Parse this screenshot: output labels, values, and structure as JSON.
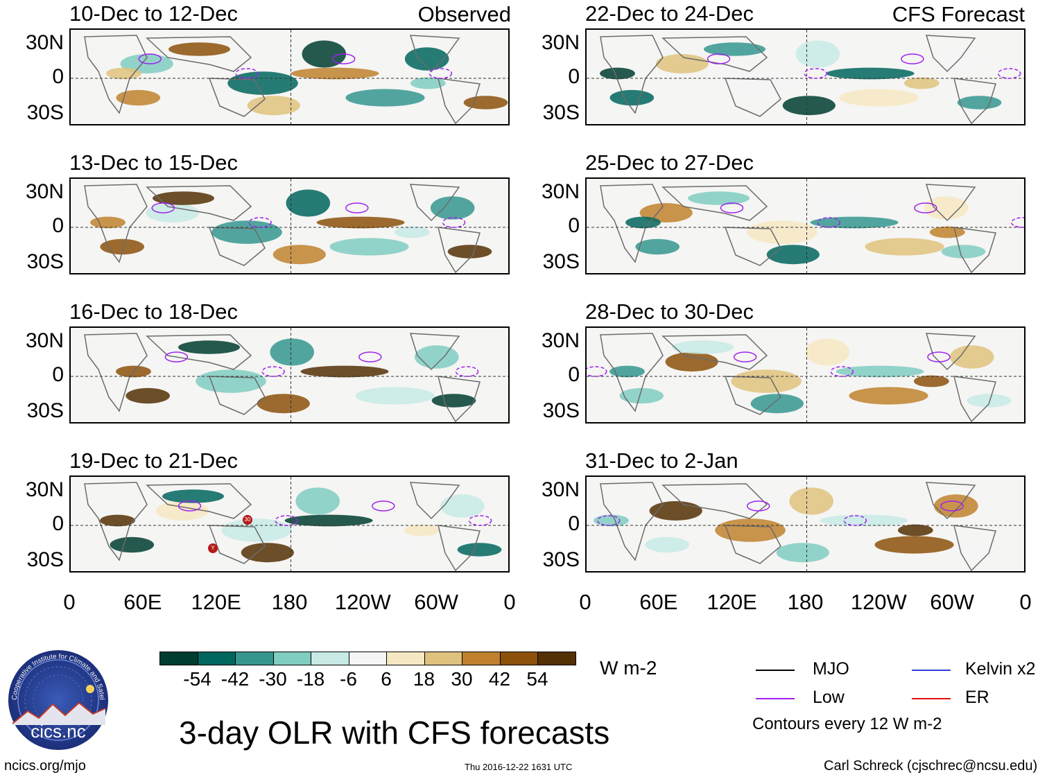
{
  "figure": {
    "title": "3-day OLR with CFS forecasts",
    "footer_left": "ncics.org/mjo",
    "footer_center": "Thu 2016-12-22 1631 UTC",
    "footer_right": "Carl Schreck (cjschrec@ncsu.edu)",
    "observed_label": "Observed",
    "forecast_label": "CFS Forecast",
    "logo": {
      "name": "cics.nc",
      "ring_text": "Cooperative Institute for Climate and Satellites"
    }
  },
  "panels": [
    {
      "title": "10-Dec to 12-Dec",
      "type": "observed"
    },
    {
      "title": "13-Dec to 15-Dec",
      "type": "observed"
    },
    {
      "title": "16-Dec to 18-Dec",
      "type": "observed"
    },
    {
      "title": "19-Dec to 21-Dec",
      "type": "observed"
    },
    {
      "title": "22-Dec to 24-Dec",
      "type": "forecast"
    },
    {
      "title": "25-Dec to 27-Dec",
      "type": "forecast"
    },
    {
      "title": "28-Dec to 30-Dec",
      "type": "forecast"
    },
    {
      "title": "31-Dec to 2-Jan",
      "type": "forecast"
    }
  ],
  "axes": {
    "y_ticks": [
      "30N",
      "0",
      "30S"
    ],
    "x_ticks": [
      "0",
      "60E",
      "120E",
      "180",
      "120W",
      "60W",
      "0"
    ]
  },
  "colorbar": {
    "units": "W m-2",
    "labels": [
      "-54",
      "-42",
      "-30",
      "-18",
      "-6",
      "6",
      "18",
      "30",
      "42",
      "54"
    ],
    "colors": [
      "#003d30",
      "#01665e",
      "#35978f",
      "#80cdc1",
      "#c7eae5",
      "#f5f5f5",
      "#f6e8c3",
      "#dfc27d",
      "#bf812d",
      "#8c510a",
      "#543005"
    ]
  },
  "legend": {
    "items": [
      {
        "label": "MJO",
        "color": "#000000"
      },
      {
        "label": "Kelvin x2",
        "color": "#2d3fd8"
      },
      {
        "label": "Low",
        "color": "#a020f0"
      },
      {
        "label": "ER",
        "color": "#e01010"
      }
    ],
    "note": "Contours every 12 W m-2"
  },
  "storm_markers": [
    {
      "label": "30"
    },
    {
      "label": "Y"
    }
  ]
}
